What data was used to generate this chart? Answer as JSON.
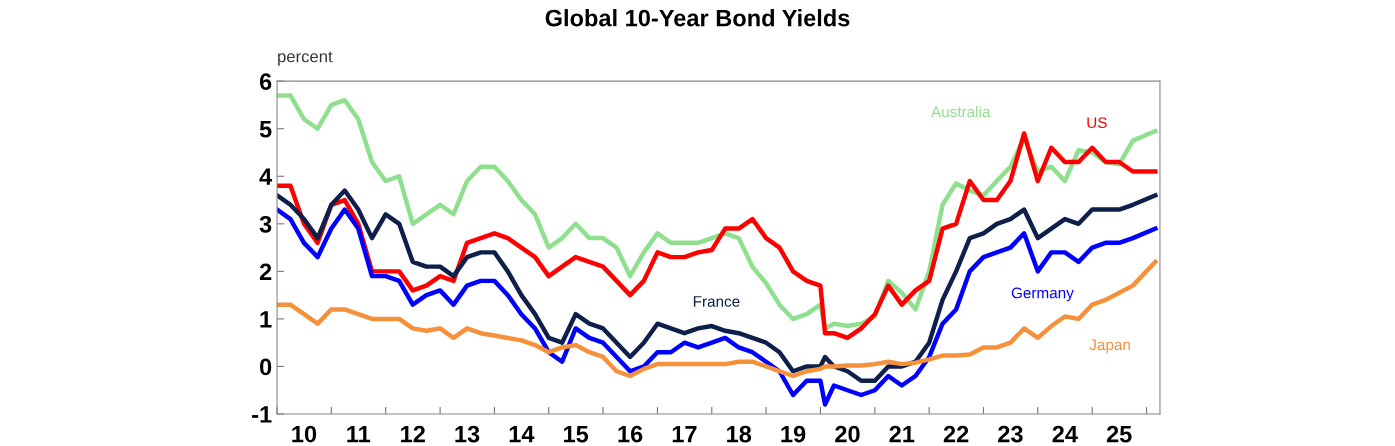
{
  "chart_data": {
    "type": "line",
    "title": "Global 10-Year Bond Yields",
    "ylabel": "percent",
    "x": [
      "2010-01",
      "2010-04",
      "2010-07",
      "2010-10",
      "2011-01",
      "2011-04",
      "2011-07",
      "2011-10",
      "2012-01",
      "2012-04",
      "2012-07",
      "2012-10",
      "2013-01",
      "2013-04",
      "2013-07",
      "2013-10",
      "2014-01",
      "2014-04",
      "2014-07",
      "2014-10",
      "2015-01",
      "2015-04",
      "2015-07",
      "2015-10",
      "2016-01",
      "2016-04",
      "2016-07",
      "2016-10",
      "2017-01",
      "2017-04",
      "2017-07",
      "2017-10",
      "2018-01",
      "2018-04",
      "2018-07",
      "2018-10",
      "2019-01",
      "2019-04",
      "2019-07",
      "2019-10",
      "2020-01",
      "2020-02",
      "2020-04",
      "2020-07",
      "2020-10",
      "2021-01",
      "2021-04",
      "2021-07",
      "2021-10",
      "2022-01",
      "2022-04",
      "2022-07",
      "2022-10",
      "2023-01",
      "2023-04",
      "2023-07",
      "2023-10",
      "2024-01",
      "2024-04",
      "2024-07",
      "2024-10",
      "2025-01",
      "2025-04",
      "2025-07",
      "2025-10",
      "2026-03"
    ],
    "series": [
      {
        "name": "Australia",
        "color": "#8ee08e",
        "values": [
          5.7,
          5.7,
          5.2,
          5.0,
          5.5,
          5.6,
          5.2,
          4.3,
          3.9,
          4.0,
          3.0,
          3.2,
          3.4,
          3.2,
          3.9,
          4.2,
          4.2,
          3.9,
          3.5,
          3.2,
          2.5,
          2.7,
          3.0,
          2.7,
          2.7,
          2.5,
          1.9,
          2.4,
          2.8,
          2.6,
          2.6,
          2.6,
          2.7,
          2.8,
          2.7,
          2.1,
          1.75,
          1.3,
          1.0,
          1.1,
          1.3,
          0.8,
          0.9,
          0.85,
          0.9,
          1.05,
          1.8,
          1.55,
          1.2,
          2.0,
          3.4,
          3.85,
          3.7,
          3.6,
          3.9,
          4.2,
          4.8,
          4.1,
          4.2,
          3.9,
          4.55,
          4.5,
          4.3,
          4.25,
          4.75,
          4.95
        ]
      },
      {
        "name": "US",
        "color": "#ff0000",
        "values": [
          3.8,
          3.8,
          3.0,
          2.6,
          3.4,
          3.5,
          3.0,
          2.0,
          2.0,
          2.0,
          1.6,
          1.7,
          1.9,
          1.8,
          2.6,
          2.7,
          2.8,
          2.7,
          2.5,
          2.3,
          1.9,
          2.1,
          2.3,
          2.2,
          2.1,
          1.8,
          1.5,
          1.8,
          2.4,
          2.3,
          2.3,
          2.4,
          2.45,
          2.9,
          2.9,
          3.1,
          2.7,
          2.5,
          2.0,
          1.8,
          1.7,
          0.7,
          0.7,
          0.6,
          0.8,
          1.1,
          1.7,
          1.3,
          1.6,
          1.8,
          2.9,
          3.0,
          3.9,
          3.5,
          3.5,
          3.9,
          4.9,
          3.9,
          4.6,
          4.3,
          4.3,
          4.6,
          4.3,
          4.3,
          4.1,
          4.1
        ]
      },
      {
        "name": "France",
        "color": "#0d1f4a",
        "values": [
          3.6,
          3.4,
          3.1,
          2.7,
          3.4,
          3.7,
          3.3,
          2.7,
          3.2,
          3.0,
          2.2,
          2.1,
          2.1,
          1.9,
          2.3,
          2.4,
          2.4,
          2.0,
          1.5,
          1.1,
          0.6,
          0.5,
          1.1,
          0.9,
          0.8,
          0.5,
          0.2,
          0.5,
          0.9,
          0.8,
          0.7,
          0.8,
          0.85,
          0.75,
          0.7,
          0.6,
          0.5,
          0.3,
          -0.1,
          0.0,
          0.0,
          0.2,
          0.0,
          -0.1,
          -0.3,
          -0.3,
          0.0,
          0.0,
          0.1,
          0.5,
          1.4,
          2.0,
          2.7,
          2.8,
          3.0,
          3.1,
          3.3,
          2.7,
          2.9,
          3.1,
          3.0,
          3.3,
          3.3,
          3.3,
          3.4,
          3.6
        ]
      },
      {
        "name": "Germany",
        "color": "#0000ff",
        "values": [
          3.3,
          3.1,
          2.6,
          2.3,
          2.9,
          3.3,
          2.9,
          1.9,
          1.9,
          1.8,
          1.3,
          1.5,
          1.6,
          1.3,
          1.7,
          1.8,
          1.8,
          1.5,
          1.1,
          0.8,
          0.3,
          0.1,
          0.8,
          0.6,
          0.5,
          0.2,
          -0.1,
          0.0,
          0.3,
          0.3,
          0.5,
          0.4,
          0.5,
          0.6,
          0.4,
          0.3,
          0.1,
          -0.1,
          -0.6,
          -0.3,
          -0.3,
          -0.8,
          -0.4,
          -0.5,
          -0.6,
          -0.5,
          -0.2,
          -0.4,
          -0.2,
          0.2,
          0.9,
          1.2,
          2.0,
          2.3,
          2.4,
          2.5,
          2.8,
          2.0,
          2.4,
          2.4,
          2.2,
          2.5,
          2.6,
          2.6,
          2.7,
          2.9
        ]
      },
      {
        "name": "Japan",
        "color": "#f5913a",
        "values": [
          1.3,
          1.3,
          1.1,
          0.9,
          1.2,
          1.2,
          1.1,
          1.0,
          1.0,
          1.0,
          0.8,
          0.75,
          0.8,
          0.6,
          0.8,
          0.7,
          0.65,
          0.6,
          0.55,
          0.45,
          0.3,
          0.4,
          0.45,
          0.3,
          0.2,
          -0.1,
          -0.2,
          -0.05,
          0.05,
          0.05,
          0.05,
          0.05,
          0.05,
          0.05,
          0.1,
          0.1,
          0.0,
          -0.1,
          -0.2,
          -0.1,
          -0.05,
          0.0,
          0.0,
          0.02,
          0.02,
          0.05,
          0.1,
          0.05,
          0.08,
          0.15,
          0.23,
          0.23,
          0.25,
          0.4,
          0.4,
          0.5,
          0.8,
          0.6,
          0.85,
          1.05,
          1.0,
          1.3,
          1.4,
          1.55,
          1.7,
          2.2
        ]
      }
    ],
    "xlim": [
      "2010-01",
      "2026-04"
    ],
    "xticks": [
      {
        "value": "2010-01",
        "label": null
      },
      {
        "value": "2010-07",
        "label": "10"
      },
      {
        "value": "2011-01",
        "label": null
      },
      {
        "value": "2011-07",
        "label": "11"
      },
      {
        "value": "2012-01",
        "label": null
      },
      {
        "value": "2012-07",
        "label": "12"
      },
      {
        "value": "2013-01",
        "label": null
      },
      {
        "value": "2013-07",
        "label": "13"
      },
      {
        "value": "2014-01",
        "label": null
      },
      {
        "value": "2014-07",
        "label": "14"
      },
      {
        "value": "2015-01",
        "label": null
      },
      {
        "value": "2015-07",
        "label": "15"
      },
      {
        "value": "2016-01",
        "label": null
      },
      {
        "value": "2016-07",
        "label": "16"
      },
      {
        "value": "2017-01",
        "label": null
      },
      {
        "value": "2017-07",
        "label": "17"
      },
      {
        "value": "2018-01",
        "label": null
      },
      {
        "value": "2018-07",
        "label": "18"
      },
      {
        "value": "2019-01",
        "label": null
      },
      {
        "value": "2019-07",
        "label": "19"
      },
      {
        "value": "2020-01",
        "label": null
      },
      {
        "value": "2020-07",
        "label": "20"
      },
      {
        "value": "2021-01",
        "label": null
      },
      {
        "value": "2021-07",
        "label": "21"
      },
      {
        "value": "2022-01",
        "label": null
      },
      {
        "value": "2022-07",
        "label": "22"
      },
      {
        "value": "2023-01",
        "label": null
      },
      {
        "value": "2023-07",
        "label": "23"
      },
      {
        "value": "2024-01",
        "label": null
      },
      {
        "value": "2024-07",
        "label": "24"
      },
      {
        "value": "2025-01",
        "label": null
      },
      {
        "value": "2025-07",
        "label": "25"
      },
      {
        "value": "2026-01",
        "label": null
      }
    ],
    "ylim": [
      -1,
      6
    ],
    "yticks": [
      -1,
      0,
      1,
      2,
      3,
      4,
      5,
      6
    ],
    "grid": false,
    "legend": false,
    "marker": "none",
    "line_style": "solid"
  }
}
